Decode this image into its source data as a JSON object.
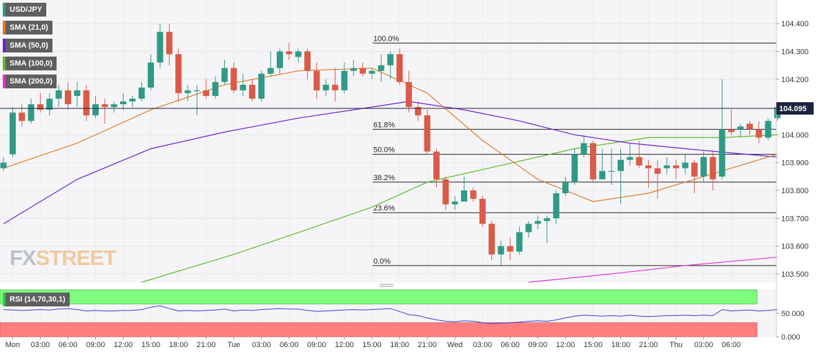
{
  "legend": {
    "symbol": "USD/JPY",
    "sma21": "SMA (21,0)",
    "sma50": "SMA (50,0)",
    "sma100": "SMA (100,0)",
    "sma200": "SMA (200,0)",
    "rsi": "RSI (14,70,30,1)"
  },
  "logo": {
    "part1": "FX",
    "part2": "STREET"
  },
  "colors": {
    "up": "#2f9a86",
    "down": "#d95b48",
    "sma21": "#e07b25",
    "sma50": "#6a1fd1",
    "sma100": "#5cb82a",
    "sma200": "#e033d6",
    "rsi_line": "#3b3bd6",
    "rsi_top": "#7dfc7d",
    "rsi_bottom": "#ff7f7f",
    "price_tag_bg": "#1c2340"
  },
  "chart_data": {
    "type": "candlestick",
    "symbol": "USD/JPY",
    "timeframe": "1h",
    "ylim": [
      103.47,
      104.46
    ],
    "yticks": [
      "104.400",
      "104.300",
      "104.200",
      "104.100",
      "104.000",
      "103.900",
      "103.800",
      "103.700",
      "103.600",
      "103.500"
    ],
    "xticks": [
      {
        "i": 1,
        "label": "Mon"
      },
      {
        "i": 4,
        "label": "03:00"
      },
      {
        "i": 7,
        "label": "06:00"
      },
      {
        "i": 10,
        "label": "09:00"
      },
      {
        "i": 13,
        "label": "12:00"
      },
      {
        "i": 16,
        "label": "15:00"
      },
      {
        "i": 19,
        "label": "18:00"
      },
      {
        "i": 22,
        "label": "21:00"
      },
      {
        "i": 25,
        "label": "Tue"
      },
      {
        "i": 28,
        "label": "03:00"
      },
      {
        "i": 31,
        "label": "06:00"
      },
      {
        "i": 34,
        "label": "09:00"
      },
      {
        "i": 37,
        "label": "12:00"
      },
      {
        "i": 40,
        "label": "15:00"
      },
      {
        "i": 43,
        "label": "18:00"
      },
      {
        "i": 46,
        "label": "21:00"
      },
      {
        "i": 49,
        "label": "Wed"
      },
      {
        "i": 52,
        "label": "03:00"
      },
      {
        "i": 55,
        "label": "06:00"
      },
      {
        "i": 58,
        "label": "09:00"
      },
      {
        "i": 61,
        "label": "12:00"
      },
      {
        "i": 64,
        "label": "15:00"
      },
      {
        "i": 67,
        "label": "18:00"
      },
      {
        "i": 70,
        "label": "21:00"
      },
      {
        "i": 73,
        "label": "Thu"
      },
      {
        "i": 76,
        "label": "03:00"
      },
      {
        "i": 79,
        "label": "06:00"
      }
    ],
    "candles": [
      [
        103.88,
        103.92,
        103.87,
        103.9
      ],
      [
        103.93,
        104.1,
        103.92,
        104.08
      ],
      [
        104.08,
        104.11,
        104.03,
        104.05
      ],
      [
        104.05,
        104.13,
        104.04,
        104.11
      ],
      [
        104.11,
        104.15,
        104.08,
        104.09
      ],
      [
        104.09,
        104.15,
        104.07,
        104.13
      ],
      [
        104.13,
        104.18,
        104.1,
        104.16
      ],
      [
        104.16,
        104.19,
        104.09,
        104.11
      ],
      [
        104.14,
        104.19,
        104.1,
        104.16
      ],
      [
        104.16,
        104.18,
        104.05,
        104.07
      ],
      [
        104.07,
        104.14,
        104.06,
        104.11
      ],
      [
        104.11,
        104.13,
        104.04,
        104.1
      ],
      [
        104.1,
        104.12,
        104.08,
        104.11
      ],
      [
        104.11,
        104.15,
        104.09,
        104.12
      ],
      [
        104.12,
        104.14,
        104.1,
        104.13
      ],
      [
        104.13,
        104.19,
        104.12,
        104.17
      ],
      [
        104.17,
        104.29,
        104.16,
        104.26
      ],
      [
        104.26,
        104.4,
        104.24,
        104.37
      ],
      [
        104.37,
        104.4,
        104.25,
        104.29
      ],
      [
        104.29,
        104.31,
        104.12,
        104.15
      ],
      [
        104.15,
        104.18,
        104.12,
        104.16
      ],
      [
        104.16,
        104.18,
        104.07,
        104.16
      ],
      [
        104.16,
        104.2,
        104.13,
        104.14
      ],
      [
        104.14,
        104.21,
        104.13,
        104.19
      ],
      [
        104.19,
        104.27,
        104.18,
        104.24
      ],
      [
        104.24,
        104.26,
        104.15,
        104.16
      ],
      [
        104.16,
        104.22,
        104.14,
        104.18
      ],
      [
        104.18,
        104.2,
        104.12,
        104.13
      ],
      [
        104.13,
        104.23,
        104.12,
        104.22
      ],
      [
        104.22,
        104.3,
        104.21,
        104.24
      ],
      [
        104.24,
        104.31,
        104.22,
        104.3
      ],
      [
        104.3,
        104.33,
        104.27,
        104.29
      ],
      [
        104.28,
        104.31,
        104.26,
        104.3
      ],
      [
        104.3,
        104.31,
        104.2,
        104.23
      ],
      [
        104.23,
        104.26,
        104.13,
        104.16
      ],
      [
        104.16,
        104.2,
        104.14,
        104.18
      ],
      [
        104.18,
        104.24,
        104.12,
        104.16
      ],
      [
        104.16,
        104.26,
        104.15,
        104.23
      ],
      [
        104.23,
        104.27,
        104.21,
        104.24
      ],
      [
        104.24,
        104.26,
        104.21,
        104.22
      ],
      [
        104.22,
        104.24,
        104.2,
        104.23
      ],
      [
        104.23,
        104.29,
        104.19,
        104.25
      ],
      [
        104.25,
        104.3,
        104.2,
        104.29
      ],
      [
        104.29,
        104.31,
        104.18,
        104.19
      ],
      [
        104.19,
        104.23,
        104.08,
        104.1
      ],
      [
        104.1,
        104.12,
        104.05,
        104.07
      ],
      [
        104.07,
        104.09,
        103.93,
        103.94
      ],
      [
        103.94,
        103.95,
        103.81,
        103.84
      ],
      [
        103.84,
        103.85,
        103.73,
        103.75
      ],
      [
        103.75,
        103.78,
        103.73,
        103.76
      ],
      [
        103.76,
        103.85,
        103.76,
        103.8
      ],
      [
        103.8,
        103.81,
        103.76,
        103.77
      ],
      [
        103.77,
        103.78,
        103.67,
        103.68
      ],
      [
        103.68,
        103.69,
        103.55,
        103.57
      ],
      [
        103.57,
        103.62,
        103.53,
        103.6
      ],
      [
        103.6,
        103.63,
        103.55,
        103.58
      ],
      [
        103.58,
        103.67,
        103.57,
        103.65
      ],
      [
        103.65,
        103.69,
        103.63,
        103.68
      ],
      [
        103.68,
        103.71,
        103.66,
        103.69
      ],
      [
        103.69,
        103.71,
        103.61,
        103.7
      ],
      [
        103.7,
        103.8,
        103.68,
        103.79
      ],
      [
        103.79,
        103.85,
        103.78,
        103.83
      ],
      [
        103.83,
        103.95,
        103.82,
        103.93
      ],
      [
        103.93,
        104.0,
        103.92,
        103.97
      ],
      [
        103.97,
        103.98,
        103.83,
        103.84
      ],
      [
        103.84,
        103.95,
        103.84,
        103.87
      ],
      [
        103.87,
        103.95,
        103.82,
        103.87
      ],
      [
        103.87,
        103.95,
        103.75,
        103.91
      ],
      [
        103.91,
        103.97,
        103.89,
        103.92
      ],
      [
        103.92,
        103.98,
        103.88,
        103.89
      ],
      [
        103.89,
        103.91,
        103.81,
        103.88
      ],
      [
        103.88,
        103.91,
        103.77,
        103.86
      ],
      [
        103.88,
        103.92,
        103.86,
        103.89
      ],
      [
        103.89,
        103.91,
        103.84,
        103.88
      ],
      [
        103.88,
        103.93,
        103.86,
        103.9
      ],
      [
        103.9,
        103.91,
        103.79,
        103.85
      ],
      [
        103.85,
        103.94,
        103.83,
        103.92
      ],
      [
        103.92,
        103.94,
        103.8,
        103.84
      ],
      [
        103.85,
        104.2,
        103.84,
        104.02
      ],
      [
        104.02,
        104.09,
        104.0,
        104.01
      ],
      [
        104.02,
        104.04,
        103.99,
        104.03
      ],
      [
        104.04,
        104.05,
        104.0,
        104.02
      ],
      [
        104.02,
        104.05,
        103.97,
        103.99
      ],
      [
        103.99,
        104.06,
        103.98,
        104.05
      ],
      [
        104.06,
        104.1,
        104.05,
        104.1
      ]
    ],
    "last_price": "104.095",
    "fibonacci": [
      {
        "label": "100.0%",
        "price": 104.33
      },
      {
        "label": "61.8%",
        "price": 104.02
      },
      {
        "label": "50.0%",
        "price": 103.93
      },
      {
        "label": "38.2%",
        "price": 103.83
      },
      {
        "label": "23.6%",
        "price": 103.72
      },
      {
        "label": "0.0%",
        "price": 103.53
      }
    ],
    "sma21": [
      [
        0,
        103.88
      ],
      [
        8,
        103.97
      ],
      [
        16,
        104.09
      ],
      [
        24,
        104.18
      ],
      [
        32,
        104.23
      ],
      [
        40,
        104.24
      ],
      [
        46,
        104.15
      ],
      [
        52,
        103.98
      ],
      [
        58,
        103.84
      ],
      [
        64,
        103.76
      ],
      [
        70,
        103.79
      ],
      [
        76,
        103.85
      ],
      [
        84,
        103.93
      ]
    ],
    "sma50": [
      [
        0,
        103.68
      ],
      [
        8,
        103.84
      ],
      [
        16,
        103.95
      ],
      [
        24,
        104.01
      ],
      [
        32,
        104.06
      ],
      [
        40,
        104.1
      ],
      [
        44,
        104.12
      ],
      [
        50,
        104.09
      ],
      [
        56,
        104.05
      ],
      [
        62,
        104.0
      ],
      [
        68,
        103.97
      ],
      [
        74,
        103.95
      ],
      [
        84,
        103.92
      ]
    ],
    "sma100": [
      [
        15,
        103.47
      ],
      [
        25,
        103.57
      ],
      [
        33,
        103.66
      ],
      [
        40,
        103.74
      ],
      [
        46,
        103.83
      ],
      [
        54,
        103.89
      ],
      [
        62,
        103.95
      ],
      [
        70,
        103.99
      ],
      [
        78,
        103.99
      ],
      [
        84,
        104.0
      ]
    ],
    "sma200": [
      [
        57,
        103.47
      ],
      [
        66,
        103.5
      ],
      [
        74,
        103.53
      ],
      [
        84,
        103.56
      ]
    ],
    "rsi": {
      "ylim": [
        0,
        100
      ],
      "yticks": [
        "50.000",
        "0.000"
      ],
      "values": [
        58,
        57,
        56,
        57,
        58,
        57,
        59,
        60,
        58,
        55,
        56,
        55,
        55,
        56,
        56,
        58,
        63,
        66,
        60,
        55,
        56,
        55,
        56,
        57,
        59,
        55,
        57,
        56,
        58,
        59,
        60,
        59,
        59,
        56,
        54,
        55,
        56,
        57,
        58,
        57,
        58,
        59,
        60,
        54,
        47,
        45,
        40,
        36,
        33,
        32,
        34,
        33,
        30,
        28,
        29,
        30,
        31,
        33,
        34,
        33,
        36,
        40,
        44,
        46,
        45,
        44,
        45,
        44,
        46,
        44,
        43,
        44,
        45,
        45,
        46,
        45,
        46,
        45,
        58,
        55,
        56,
        57,
        55,
        56,
        58
      ]
    }
  }
}
